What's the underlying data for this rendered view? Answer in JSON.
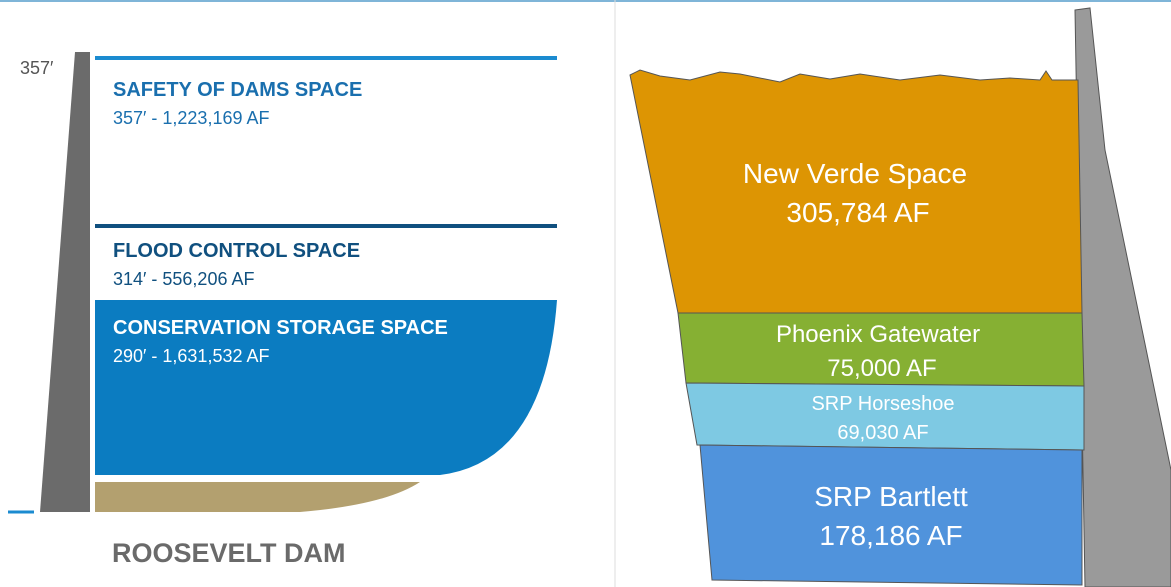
{
  "left": {
    "dam_height": "357′",
    "zones": [
      {
        "title": "SAFETY OF DAMS SPACE",
        "detail": "357′ - 1,223,169 AF"
      },
      {
        "title": "FLOOD CONTROL SPACE",
        "detail": "314′ - 556,206 AF"
      },
      {
        "title": "CONSERVATION STORAGE SPACE",
        "detail": "290′ - 1,631,532 AF"
      }
    ],
    "caption": "ROOSEVELT DAM"
  },
  "right": {
    "zones": [
      {
        "name": "New Verde Space",
        "volume": "305,784 AF"
      },
      {
        "name": "Phoenix Gatewater",
        "volume": "75,000 AF"
      },
      {
        "name": "SRP Horseshoe",
        "volume": "69,030 AF"
      },
      {
        "name": "SRP Bartlett",
        "volume": "178,186 AF"
      }
    ]
  }
}
